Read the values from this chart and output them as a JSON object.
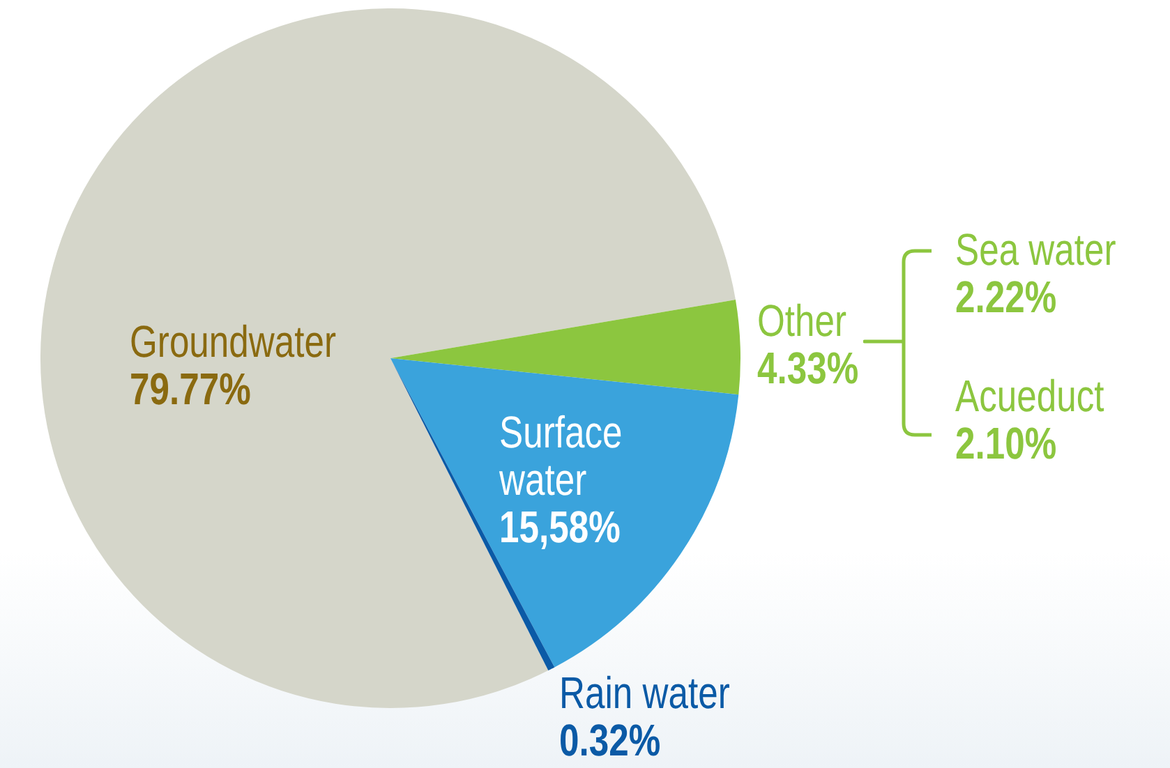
{
  "chart_data": {
    "type": "pie",
    "categories": [
      "Groundwater",
      "Other",
      "Surface water",
      "Rain water"
    ],
    "values": [
      79.77,
      4.33,
      15.58,
      0.32
    ],
    "colors": [
      "#d5d6ca",
      "#8cc63f",
      "#3aa3dc",
      "#0b5aa6"
    ],
    "value_labels": [
      "79.77%",
      "4.33%",
      "15,58%",
      "0.32%"
    ],
    "annotations": [
      "Sea water\n2.22%",
      "Acueduct\n2.10%"
    ]
  }
}
